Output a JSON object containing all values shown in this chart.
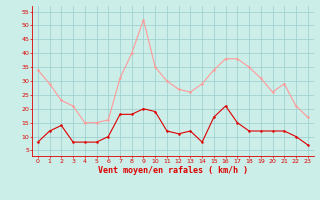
{
  "hours": [
    0,
    1,
    2,
    3,
    4,
    5,
    6,
    7,
    8,
    9,
    10,
    11,
    12,
    13,
    14,
    15,
    16,
    17,
    18,
    19,
    20,
    21,
    22,
    23
  ],
  "avg_wind": [
    8,
    12,
    14,
    8,
    8,
    8,
    10,
    18,
    18,
    20,
    19,
    12,
    11,
    12,
    8,
    17,
    21,
    15,
    12,
    12,
    12,
    12,
    10,
    7
  ],
  "gust_wind": [
    34,
    29,
    23,
    21,
    15,
    15,
    16,
    31,
    40,
    52,
    35,
    30,
    27,
    26,
    29,
    34,
    38,
    38,
    35,
    31,
    26,
    29,
    21,
    17
  ],
  "bg_color": "#cceee8",
  "avg_color": "#dd0000",
  "gust_color": "#ff9999",
  "grid_color": "#99cccc",
  "xlabel": "Vent moyen/en rafales ( km/h )",
  "xlabel_color": "#dd0000",
  "yticks": [
    5,
    10,
    15,
    20,
    25,
    30,
    35,
    40,
    45,
    50,
    55
  ],
  "ylim": [
    3,
    57
  ],
  "xlim": [
    -0.5,
    23.5
  ],
  "tick_color": "#dd0000",
  "spine_color": "#dd0000"
}
